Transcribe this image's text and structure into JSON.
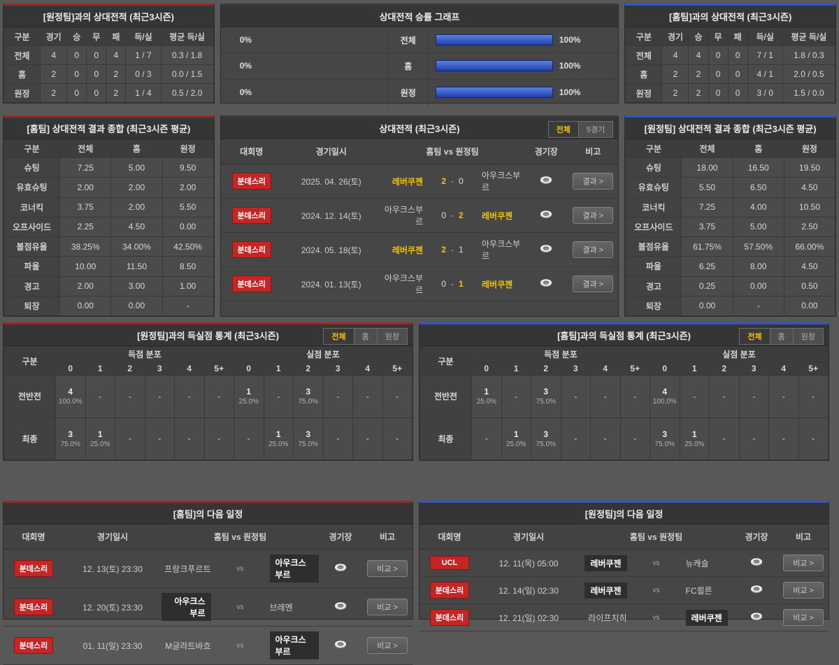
{
  "colors": {
    "accent_red": "#9e2626",
    "accent_blue": "#2d55c8",
    "highlight_yellow": "#f0c600",
    "badge_red": "#c42626",
    "bar_blue": "#2d55c8"
  },
  "panels": {
    "h2h_vs_away": {
      "title": "[원정팀]과의 상대전적 (최근3시즌)",
      "headers": [
        "구분",
        "경기",
        "승",
        "무",
        "패",
        "득/실",
        "평균 득/실"
      ],
      "rows": [
        {
          "label": "전체",
          "values": [
            "4",
            "0",
            "0",
            "4",
            "1 / 7",
            "0.3 / 1.8"
          ]
        },
        {
          "label": "홈",
          "values": [
            "2",
            "0",
            "0",
            "2",
            "0 / 3",
            "0.0 / 1.5"
          ]
        },
        {
          "label": "원정",
          "values": [
            "2",
            "0",
            "0",
            "2",
            "1 / 4",
            "0.5 / 2.0"
          ]
        }
      ]
    },
    "winrate_graph": {
      "title": "상대전적 승률 그래프",
      "rows": [
        {
          "left_pct": "0%",
          "label": "전체",
          "right_pct": "100%",
          "left_fill": 0,
          "right_fill": 1
        },
        {
          "left_pct": "0%",
          "label": "홈",
          "right_pct": "100%",
          "left_fill": 0,
          "right_fill": 1
        },
        {
          "left_pct": "0%",
          "label": "원정",
          "right_pct": "100%",
          "left_fill": 0,
          "right_fill": 1
        }
      ]
    },
    "h2h_vs_home": {
      "title": "[홈팀]과의 상대전적 (최근3시즌)",
      "headers": [
        "구분",
        "경기",
        "승",
        "무",
        "패",
        "득/실",
        "평균 득/실"
      ],
      "rows": [
        {
          "label": "전체",
          "values": [
            "4",
            "4",
            "0",
            "0",
            "7 / 1",
            "1.8 / 0.3"
          ]
        },
        {
          "label": "홈",
          "values": [
            "2",
            "2",
            "0",
            "0",
            "4 / 1",
            "2.0 / 0.5"
          ]
        },
        {
          "label": "원정",
          "values": [
            "2",
            "2",
            "0",
            "0",
            "3 / 0",
            "1.5 / 0.0"
          ]
        }
      ]
    },
    "summary_home": {
      "title": "[홈팀] 상대전적 결과 종합 (최근3시즌 평균)",
      "headers": [
        "구분",
        "전체",
        "홈",
        "원정"
      ],
      "rows": [
        {
          "label": "슈팅",
          "values": [
            "7.25",
            "5.00",
            "9.50"
          ]
        },
        {
          "label": "유효슈팅",
          "values": [
            "2.00",
            "2.00",
            "2.00"
          ]
        },
        {
          "label": "코너킥",
          "values": [
            "3.75",
            "2.00",
            "5.50"
          ]
        },
        {
          "label": "오프사이드",
          "values": [
            "2.25",
            "4.50",
            "0.00"
          ]
        },
        {
          "label": "볼점유율",
          "values": [
            "38.25%",
            "34.00%",
            "42.50%"
          ]
        },
        {
          "label": "파울",
          "values": [
            "10.00",
            "11.50",
            "8.50"
          ]
        },
        {
          "label": "경고",
          "values": [
            "2.00",
            "3.00",
            "1.00"
          ]
        },
        {
          "label": "퇴장",
          "values": [
            "0.00",
            "0.00",
            "-"
          ]
        }
      ]
    },
    "h2h_matches": {
      "title": "상대전적 (최근3시즌)",
      "tabs": [
        {
          "label": "전체",
          "active": true
        },
        {
          "label": "5경기",
          "active": false
        }
      ],
      "headers": {
        "league": "대회명",
        "date": "경기일시",
        "match": "홈팀  vs  원정팀",
        "stadium": "경기장",
        "note": "비고"
      },
      "button_label": "결과 >",
      "rows": [
        {
          "league": "분데스리",
          "date": "2025. 04. 26(토)",
          "home": "레버쿠젠",
          "home_hl": true,
          "home_score": "2",
          "away_score": "0",
          "home_win": true,
          "away_win": false,
          "away": "아우크스부르",
          "away_hl": false
        },
        {
          "league": "분데스리",
          "date": "2024. 12. 14(토)",
          "home": "아우크스부르",
          "home_hl": false,
          "home_score": "0",
          "away_score": "2",
          "home_win": false,
          "away_win": true,
          "away": "레버쿠젠",
          "away_hl": true
        },
        {
          "league": "분데스리",
          "date": "2024. 05. 18(토)",
          "home": "레버쿠젠",
          "home_hl": true,
          "home_score": "2",
          "away_score": "1",
          "home_win": true,
          "away_win": false,
          "away": "아우크스부르",
          "away_hl": false
        },
        {
          "league": "분데스리",
          "date": "2024. 01. 13(토)",
          "home": "아우크스부르",
          "home_hl": false,
          "home_score": "0",
          "away_score": "1",
          "home_win": false,
          "away_win": true,
          "away": "레버쿠젠",
          "away_hl": true
        }
      ]
    },
    "summary_away": {
      "title": "[원정팀] 상대전적 결과 종합 (최근3시즌 평균)",
      "headers": [
        "구분",
        "전체",
        "홈",
        "원정"
      ],
      "rows": [
        {
          "label": "슈팅",
          "values": [
            "18.00",
            "16.50",
            "19.50"
          ]
        },
        {
          "label": "유효슈팅",
          "values": [
            "5.50",
            "6.50",
            "4.50"
          ]
        },
        {
          "label": "코너킥",
          "values": [
            "7.25",
            "4.00",
            "10.50"
          ]
        },
        {
          "label": "오프사이드",
          "values": [
            "3.75",
            "5.00",
            "2.50"
          ]
        },
        {
          "label": "볼점유율",
          "values": [
            "61.75%",
            "57.50%",
            "66.00%"
          ]
        },
        {
          "label": "파울",
          "values": [
            "6.25",
            "8.00",
            "4.50"
          ]
        },
        {
          "label": "경고",
          "values": [
            "0.25",
            "0.00",
            "0.50"
          ]
        },
        {
          "label": "퇴장",
          "values": [
            "0.00",
            "-",
            "0.00"
          ]
        }
      ]
    },
    "goal_stats_vs_away": {
      "title": "[원정팀]과의 득실점 통계 (최근3시즌)",
      "tabs": [
        {
          "label": "전체",
          "active": true
        },
        {
          "label": "홈",
          "active": false
        },
        {
          "label": "원정",
          "active": false
        }
      ],
      "col_label": "구분",
      "group_scored": "득점 분포",
      "group_conceded": "실점 분포",
      "cols": [
        "0",
        "1",
        "2",
        "3",
        "4",
        "5+"
      ],
      "rows": [
        {
          "label": "전반전",
          "scored": [
            {
              "v": "4",
              "p": "100.0%"
            },
            "-",
            "-",
            "-",
            "-",
            "-"
          ],
          "conceded": [
            {
              "v": "1",
              "p": "25.0%"
            },
            "-",
            {
              "v": "3",
              "p": "75.0%"
            },
            "-",
            "-",
            "-"
          ]
        },
        {
          "label": "최종",
          "scored": [
            {
              "v": "3",
              "p": "75.0%"
            },
            {
              "v": "1",
              "p": "25.0%"
            },
            "-",
            "-",
            "-",
            "-"
          ],
          "conceded": [
            "-",
            {
              "v": "1",
              "p": "25.0%"
            },
            {
              "v": "3",
              "p": "75.0%"
            },
            "-",
            "-",
            "-"
          ]
        }
      ]
    },
    "goal_stats_vs_home": {
      "title": "[홈팀]과의 득실점 통계 (최근3시즌)",
      "tabs": [
        {
          "label": "전체",
          "active": true
        },
        {
          "label": "홈",
          "active": false
        },
        {
          "label": "원정",
          "active": false
        }
      ],
      "col_label": "구분",
      "group_scored": "득점 분포",
      "group_conceded": "실점 분포",
      "cols": [
        "0",
        "1",
        "2",
        "3",
        "4",
        "5+"
      ],
      "rows": [
        {
          "label": "전반전",
          "scored": [
            {
              "v": "1",
              "p": "25.0%"
            },
            "-",
            {
              "v": "3",
              "p": "75.0%"
            },
            "-",
            "-",
            "-"
          ],
          "conceded": [
            {
              "v": "4",
              "p": "100.0%"
            },
            "-",
            "-",
            "-",
            "-",
            "-"
          ]
        },
        {
          "label": "최종",
          "scored": [
            "-",
            {
              "v": "1",
              "p": "25.0%"
            },
            {
              "v": "3",
              "p": "75.0%"
            },
            "-",
            "-",
            "-"
          ],
          "conceded": [
            {
              "v": "3",
              "p": "75.0%"
            },
            {
              "v": "1",
              "p": "25.0%"
            },
            "-",
            "-",
            "-",
            "-"
          ]
        }
      ]
    },
    "schedule_home": {
      "title": "[홈팀]의 다음 일정",
      "headers": {
        "league": "대회명",
        "date": "경기일시",
        "match": "홈팀  vs  원정팀",
        "stadium": "경기장",
        "note": "비고"
      },
      "vs_label": "vs",
      "button_label": "비교 >",
      "rows": [
        {
          "league": "분데스리",
          "date": "12. 13(토) 23:30",
          "home": "프랑크푸르트",
          "home_hl": false,
          "away": "아우크스부르",
          "away_hl": true
        },
        {
          "league": "분데스리",
          "date": "12. 20(토) 23:30",
          "home": "아우크스부르",
          "home_hl": true,
          "away": "브레멘",
          "away_hl": false
        },
        {
          "league": "분데스리",
          "date": "01. 11(일) 23:30",
          "home": "M글라트바흐",
          "home_hl": false,
          "away": "아우크스부르",
          "away_hl": true
        }
      ]
    },
    "schedule_away": {
      "title": "[원정팀]의 다음 일정",
      "headers": {
        "league": "대회명",
        "date": "경기일시",
        "match": "홈팀  vs  원정팀",
        "stadium": "경기장",
        "note": "비고"
      },
      "vs_label": "vs",
      "button_label": "비교 >",
      "rows": [
        {
          "league": "UCL",
          "date": "12. 11(목) 05:00",
          "home": "레버쿠젠",
          "home_hl": true,
          "away": "뉴캐슬",
          "away_hl": false
        },
        {
          "league": "분데스리",
          "date": "12. 14(일) 02:30",
          "home": "레버쿠젠",
          "home_hl": true,
          "away": "FC쾰른",
          "away_hl": false
        },
        {
          "league": "분데스리",
          "date": "12. 21(일) 02:30",
          "home": "라이프치히",
          "home_hl": false,
          "away": "레버쿠젠",
          "away_hl": true
        }
      ]
    }
  }
}
